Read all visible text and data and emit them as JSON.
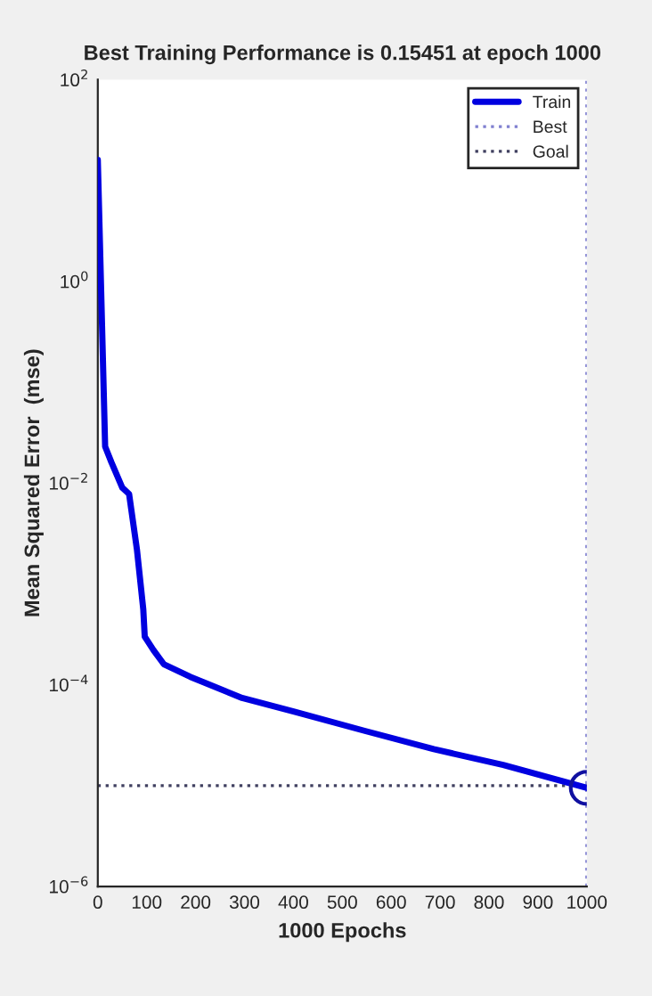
{
  "chart_data": {
    "type": "line",
    "title": "Best Training Performance is 0.15451 at epoch 1000",
    "xlabel": "1000 Epochs",
    "ylabel": "Mean Squared Error  (mse)",
    "series": [
      {
        "name": "Train",
        "color": "#0000e0",
        "x": [
          0,
          15,
          28,
          50,
          64,
          80,
          93,
          96,
          114,
          135,
          189,
          295,
          402,
          545,
          687,
          829,
          1000
        ],
        "values": [
          16,
          0.023,
          0.016,
          0.009,
          0.0078,
          0.0022,
          0.00056,
          0.0003,
          0.00022,
          0.00016,
          0.00012,
          7.4e-05,
          5.4e-05,
          3.5e-05,
          2.3e-05,
          1.6e-05,
          9.5e-06
        ]
      },
      {
        "type": "scatter",
        "marker": "circle",
        "color": "#1010a0",
        "x": [
          1000
        ],
        "values": [
          9.5e-06
        ]
      }
    ],
    "ref_lines": [
      {
        "axis": "x",
        "value": 1000,
        "label": "Best",
        "color": "#8080d0",
        "line_style": "dotted"
      },
      {
        "axis": "y",
        "value": 1e-05,
        "label": "Goal",
        "color": "#404060",
        "line_style": "dotted"
      }
    ],
    "log": "y",
    "xlim": [
      0,
      1000
    ],
    "ylim": [
      1e-06,
      100
    ],
    "xticks": [
      0,
      100,
      200,
      300,
      400,
      500,
      600,
      700,
      800,
      900,
      1000
    ],
    "yticks": [
      {
        "value": 1e-06,
        "label": "10$^{−6}$"
      },
      {
        "value": 0.0001,
        "label": "10$^{−4}$"
      },
      {
        "value": 0.01,
        "label": "10$^{−2}$"
      },
      {
        "value": 1,
        "label": "10$^{0}$"
      },
      {
        "value": 100,
        "label": "10$^{2}$"
      }
    ],
    "grid": false,
    "legend": "top right"
  }
}
